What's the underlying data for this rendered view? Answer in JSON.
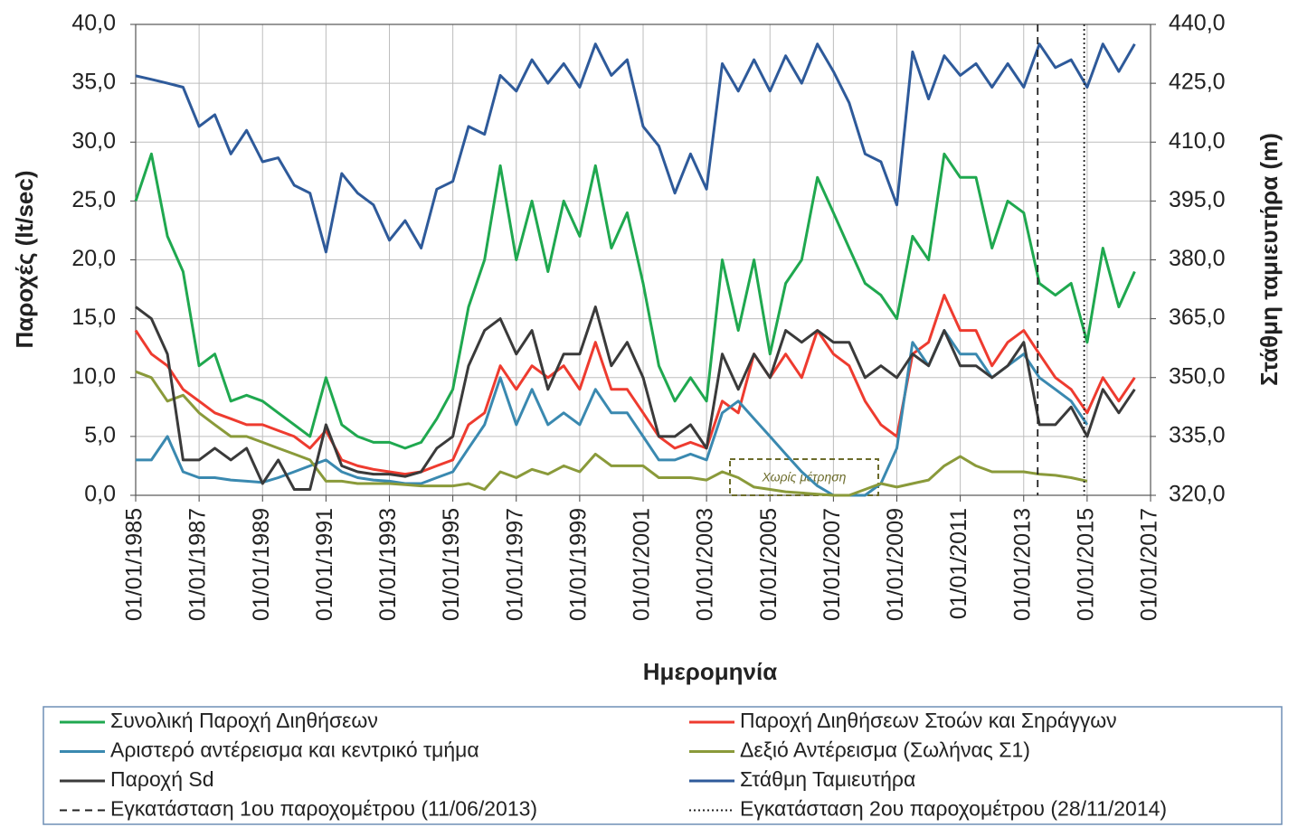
{
  "chart_data": {
    "type": "line",
    "x_label": "Ημερομηνία",
    "y_label": "Παροχές (lt/sec)",
    "y2_label": "Στάθμη ταμιευτήρα (m)",
    "annotation": "Χωρίς μέτρηση",
    "grid": true,
    "xlim": [
      "01/01/1985",
      "01/01/2017"
    ],
    "xticks": [
      "01/01/1985",
      "01/01/1987",
      "01/01/1989",
      "01/01/1991",
      "01/01/1993",
      "01/01/1995",
      "01/01/1997",
      "01/01/1999",
      "01/01/2001",
      "01/01/2003",
      "01/01/2005",
      "01/01/2007",
      "01/01/2009",
      "01/01/2011",
      "01/01/2013",
      "01/01/2015",
      "01/01/2017"
    ],
    "ylim": [
      0,
      40
    ],
    "yticks": [
      {
        "value": 0,
        "label": "0,0"
      },
      {
        "value": 5,
        "label": "5,0"
      },
      {
        "value": 10,
        "label": "10,0"
      },
      {
        "value": 15,
        "label": "15,0"
      },
      {
        "value": 20,
        "label": "20,0"
      },
      {
        "value": 25,
        "label": "25,0"
      },
      {
        "value": 30,
        "label": "30,0"
      },
      {
        "value": 35,
        "label": "35,0"
      },
      {
        "value": 40,
        "label": "40,0"
      }
    ],
    "y2lim": [
      320,
      440
    ],
    "y2ticks": [
      {
        "value": 320,
        "label": "320,0"
      },
      {
        "value": 335,
        "label": "335,0"
      },
      {
        "value": 350,
        "label": "350,0"
      },
      {
        "value": 365,
        "label": "365,0"
      },
      {
        "value": 380,
        "label": "380,0"
      },
      {
        "value": 395,
        "label": "395,0"
      },
      {
        "value": 410,
        "label": "410,0"
      },
      {
        "value": 425,
        "label": "425,0"
      },
      {
        "value": 440,
        "label": "440,0"
      }
    ],
    "x": [
      "01/01/1985",
      "01/07/1985",
      "01/01/1986",
      "01/07/1986",
      "01/01/1987",
      "01/07/1987",
      "01/01/1988",
      "01/07/1988",
      "01/01/1989",
      "01/07/1989",
      "01/01/1990",
      "01/07/1990",
      "01/01/1991",
      "01/07/1991",
      "01/01/1992",
      "01/07/1992",
      "01/01/1993",
      "01/07/1993",
      "01/01/1994",
      "01/07/1994",
      "01/01/1995",
      "01/07/1995",
      "01/01/1996",
      "01/07/1996",
      "01/01/1997",
      "01/07/1997",
      "01/01/1998",
      "01/07/1998",
      "01/01/1999",
      "01/07/1999",
      "01/01/2000",
      "01/07/2000",
      "01/01/2001",
      "01/07/2001",
      "01/01/2002",
      "01/07/2002",
      "01/01/2003",
      "01/07/2003",
      "01/01/2004",
      "01/07/2004",
      "01/01/2005",
      "01/07/2005",
      "01/01/2006",
      "01/07/2006",
      "01/01/2007",
      "01/07/2007",
      "01/01/2008",
      "01/07/2008",
      "01/01/2009",
      "01/07/2009",
      "01/01/2010",
      "01/07/2010",
      "01/01/2011",
      "01/07/2011",
      "01/01/2012",
      "01/07/2012",
      "01/01/2013",
      "01/07/2013",
      "01/01/2014",
      "01/07/2014",
      "01/01/2015",
      "01/07/2015",
      "01/01/2016",
      "01/07/2016"
    ],
    "series": [
      {
        "name": "Συνολική Παροχή Διηθήσεων",
        "color": "#1fa84f",
        "values": [
          25,
          29,
          22,
          19,
          11,
          12,
          8,
          8.5,
          8,
          7,
          6,
          5,
          10,
          6,
          5,
          4.5,
          4.5,
          4,
          4.5,
          6.5,
          9,
          16,
          20,
          28,
          20,
          25,
          19,
          25,
          22,
          28,
          21,
          24,
          18,
          11,
          8,
          10,
          8,
          20,
          14,
          20,
          12,
          18,
          20,
          27,
          24,
          21,
          18,
          17,
          15,
          22,
          20,
          29,
          27,
          27,
          21,
          25,
          24,
          18,
          17,
          18,
          13,
          21,
          16,
          19
        ]
      },
      {
        "name": "Παροχή Διηθήσεων Στοών και Σηράγγων",
        "color": "#ee3b2f",
        "values": [
          14,
          12,
          11,
          9,
          8,
          7,
          6.5,
          6,
          6,
          5.5,
          5,
          4,
          5.5,
          3,
          2.5,
          2.2,
          2,
          1.8,
          2,
          2.5,
          3,
          6,
          7,
          11,
          9,
          11,
          10,
          11,
          9,
          13,
          9,
          9,
          7,
          5,
          4,
          4.5,
          4,
          8,
          7,
          12,
          10,
          12,
          10,
          14,
          12,
          11,
          8,
          6,
          5,
          12,
          13,
          17,
          14,
          14,
          11,
          13,
          14,
          12,
          10,
          9,
          7,
          10,
          8,
          10
        ]
      },
      {
        "name": "Αριστερό αντέρεισμα και κεντρικό τμήμα",
        "color": "#3a89b0",
        "values": [
          3,
          3,
          5,
          2,
          1.5,
          1.5,
          1.3,
          1.2,
          1.1,
          1.5,
          2,
          2.5,
          3,
          2,
          1.5,
          1.3,
          1.2,
          1,
          1,
          1.5,
          2,
          4,
          6,
          10,
          6,
          9,
          6,
          7,
          6,
          9,
          7,
          7,
          5,
          3,
          3,
          3.5,
          3,
          7,
          8,
          6.5,
          5,
          3.5,
          2,
          0.8,
          0,
          0,
          0,
          1,
          4,
          13,
          11,
          14,
          12,
          12,
          10,
          11,
          12,
          10,
          9,
          8,
          6,
          null,
          null,
          null
        ]
      },
      {
        "name": "Δεξιό Αντέρεισμα (Σωλήνας Σ1)",
        "color": "#8a9a3a",
        "values": [
          10.5,
          10,
          8,
          8.5,
          7,
          6,
          5,
          5,
          4.5,
          4,
          3.5,
          3,
          1.2,
          1.2,
          1,
          1,
          1,
          0.9,
          0.8,
          0.8,
          0.8,
          1,
          0.5,
          2,
          1.5,
          2.2,
          1.8,
          2.5,
          2,
          3.5,
          2.5,
          2.5,
          2.5,
          1.5,
          1.5,
          1.5,
          1.3,
          2,
          1.5,
          0.7,
          0.5,
          0.3,
          0.2,
          0.1,
          0,
          0,
          0.5,
          1,
          0.7,
          1,
          1.3,
          2.5,
          3.3,
          2.5,
          2,
          2,
          2,
          1.8,
          1.7,
          1.5,
          1.2,
          null,
          null,
          null
        ]
      },
      {
        "name": "Παροχή Sd",
        "color": "#3a3a3a",
        "values": [
          16,
          15,
          12,
          3,
          3,
          4,
          3,
          4,
          1,
          3,
          0.5,
          0.5,
          6,
          2.5,
          2,
          1.8,
          1.8,
          1.6,
          2,
          4,
          5,
          11,
          14,
          15,
          12,
          14,
          9,
          12,
          12,
          16,
          11,
          13,
          10,
          5,
          5,
          6,
          4,
          12,
          9,
          12,
          10,
          14,
          13,
          14,
          13,
          13,
          10,
          11,
          10,
          12,
          11,
          14,
          11,
          11,
          10,
          11,
          13,
          6,
          6,
          7.5,
          5,
          9,
          7,
          9
        ]
      },
      {
        "name": "Στάθμη Ταμιευτήρα",
        "color": "#2e5a9a",
        "axis": "y2",
        "values": [
          426.9,
          426,
          425,
          424,
          414,
          417,
          407,
          413,
          405,
          406,
          399,
          397,
          382,
          402,
          397,
          394,
          385,
          390,
          383,
          398,
          400,
          414,
          412,
          427,
          423,
          431,
          425,
          430,
          424,
          435,
          427,
          431,
          414,
          409,
          397,
          407,
          398,
          430,
          423,
          431,
          423,
          432,
          425,
          435,
          428,
          420,
          407,
          405,
          394,
          433,
          421,
          432,
          427,
          430,
          424,
          430,
          424,
          435,
          429,
          431,
          424,
          435,
          428,
          435
        ]
      }
    ],
    "markers": [
      {
        "name": "Εγκατάσταση 1ου παροχομέτρου (11/06/2013)",
        "x": "11/06/2013",
        "style": "dashed"
      },
      {
        "name": "Εγκατάσταση 2ου παροχομέτρου (28/11/2014)",
        "x": "28/11/2014",
        "style": "dotted"
      }
    ]
  }
}
